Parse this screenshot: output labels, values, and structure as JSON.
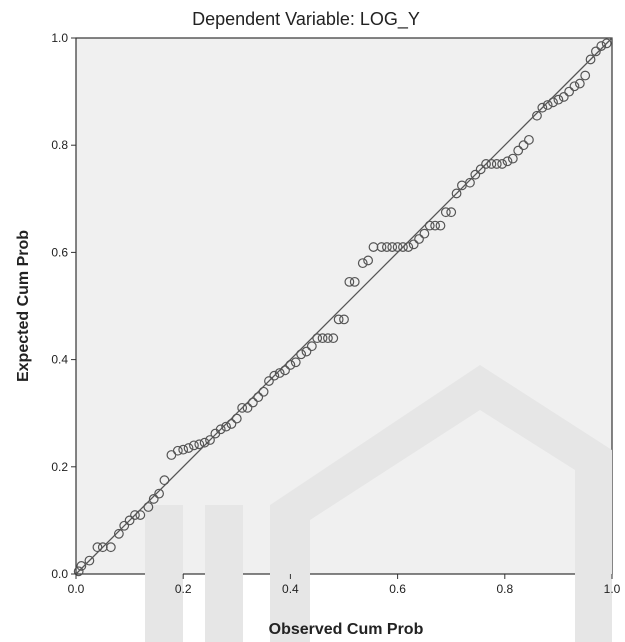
{
  "chart_data": {
    "type": "scatter",
    "title": "Dependent Variable: LOG_Y",
    "xlabel": "Observed Cum Prob",
    "ylabel": "Expected Cum Prob",
    "xlim": [
      0.0,
      1.0
    ],
    "ylim": [
      0.0,
      1.0
    ],
    "x_ticks": [
      0.0,
      0.2,
      0.4,
      0.6,
      0.8,
      1.0
    ],
    "y_ticks": [
      0.0,
      0.2,
      0.4,
      0.6,
      0.8,
      1.0
    ],
    "x_tick_labels": [
      "0.0",
      "0.2",
      "0.4",
      "0.6",
      "0.8",
      "1.0"
    ],
    "y_tick_labels": [
      "0.0",
      "0.2",
      "0.4",
      "0.6",
      "0.8",
      "1.0"
    ],
    "grid": false,
    "reference_line": {
      "from": [
        0.0,
        0.0
      ],
      "to": [
        1.0,
        1.0
      ]
    },
    "points": [
      [
        0.005,
        0.005
      ],
      [
        0.01,
        0.015
      ],
      [
        0.025,
        0.025
      ],
      [
        0.04,
        0.05
      ],
      [
        0.05,
        0.05
      ],
      [
        0.065,
        0.05
      ],
      [
        0.08,
        0.075
      ],
      [
        0.09,
        0.09
      ],
      [
        0.1,
        0.1
      ],
      [
        0.11,
        0.11
      ],
      [
        0.12,
        0.11
      ],
      [
        0.135,
        0.125
      ],
      [
        0.145,
        0.14
      ],
      [
        0.155,
        0.15
      ],
      [
        0.165,
        0.175
      ],
      [
        0.178,
        0.222
      ],
      [
        0.19,
        0.23
      ],
      [
        0.2,
        0.232
      ],
      [
        0.21,
        0.235
      ],
      [
        0.22,
        0.24
      ],
      [
        0.23,
        0.242
      ],
      [
        0.24,
        0.245
      ],
      [
        0.25,
        0.25
      ],
      [
        0.26,
        0.262
      ],
      [
        0.27,
        0.27
      ],
      [
        0.28,
        0.275
      ],
      [
        0.29,
        0.28
      ],
      [
        0.3,
        0.29
      ],
      [
        0.31,
        0.31
      ],
      [
        0.32,
        0.31
      ],
      [
        0.33,
        0.32
      ],
      [
        0.34,
        0.33
      ],
      [
        0.35,
        0.34
      ],
      [
        0.36,
        0.36
      ],
      [
        0.37,
        0.37
      ],
      [
        0.38,
        0.375
      ],
      [
        0.39,
        0.38
      ],
      [
        0.4,
        0.39
      ],
      [
        0.41,
        0.395
      ],
      [
        0.42,
        0.41
      ],
      [
        0.43,
        0.415
      ],
      [
        0.44,
        0.425
      ],
      [
        0.45,
        0.44
      ],
      [
        0.46,
        0.44
      ],
      [
        0.47,
        0.44
      ],
      [
        0.48,
        0.44
      ],
      [
        0.49,
        0.475
      ],
      [
        0.5,
        0.475
      ],
      [
        0.51,
        0.545
      ],
      [
        0.52,
        0.545
      ],
      [
        0.535,
        0.58
      ],
      [
        0.545,
        0.585
      ],
      [
        0.555,
        0.61
      ],
      [
        0.57,
        0.61
      ],
      [
        0.58,
        0.61
      ],
      [
        0.59,
        0.61
      ],
      [
        0.6,
        0.61
      ],
      [
        0.61,
        0.61
      ],
      [
        0.62,
        0.61
      ],
      [
        0.63,
        0.615
      ],
      [
        0.64,
        0.625
      ],
      [
        0.65,
        0.635
      ],
      [
        0.66,
        0.65
      ],
      [
        0.67,
        0.65
      ],
      [
        0.68,
        0.65
      ],
      [
        0.69,
        0.675
      ],
      [
        0.7,
        0.675
      ],
      [
        0.71,
        0.71
      ],
      [
        0.72,
        0.725
      ],
      [
        0.735,
        0.73
      ],
      [
        0.745,
        0.745
      ],
      [
        0.755,
        0.755
      ],
      [
        0.765,
        0.765
      ],
      [
        0.775,
        0.765
      ],
      [
        0.785,
        0.765
      ],
      [
        0.795,
        0.765
      ],
      [
        0.805,
        0.77
      ],
      [
        0.815,
        0.775
      ],
      [
        0.825,
        0.79
      ],
      [
        0.835,
        0.8
      ],
      [
        0.845,
        0.81
      ],
      [
        0.86,
        0.855
      ],
      [
        0.87,
        0.87
      ],
      [
        0.88,
        0.875
      ],
      [
        0.89,
        0.88
      ],
      [
        0.9,
        0.885
      ],
      [
        0.91,
        0.89
      ],
      [
        0.92,
        0.9
      ],
      [
        0.93,
        0.91
      ],
      [
        0.94,
        0.915
      ],
      [
        0.95,
        0.93
      ],
      [
        0.96,
        0.96
      ],
      [
        0.97,
        0.975
      ],
      [
        0.98,
        0.985
      ],
      [
        0.99,
        0.99
      ]
    ]
  }
}
